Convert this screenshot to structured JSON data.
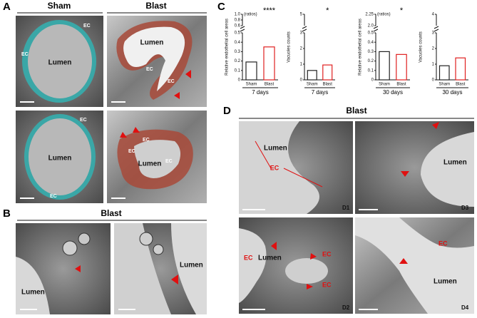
{
  "panel_a": {
    "label": "A",
    "columns": [
      "Sham",
      "Blast"
    ],
    "images": [
      {
        "lumen": "Lumen",
        "ec": [
          "EC",
          "EC"
        ]
      },
      {
        "lumen": "Lumen",
        "ec": [
          "EC",
          "EC"
        ]
      },
      {
        "lumen": "Lumen",
        "ec": [
          "EC",
          "EC"
        ]
      },
      {
        "lumen": "Lumen",
        "ec": [
          "EC",
          "EC",
          "EC"
        ]
      }
    ]
  },
  "panel_b": {
    "label": "B",
    "title": "Blast",
    "images": [
      {
        "lumen": "Lumen"
      },
      {
        "lumen": "Lumen"
      }
    ]
  },
  "panel_c": {
    "label": "C"
  },
  "chart_data": [
    {
      "type": "bar",
      "ylabel": "Relative endothelial cell areas",
      "unit": "(ratios)",
      "categories": [
        "Sham",
        "Blast"
      ],
      "values": [
        0.19,
        0.35
      ],
      "colors": [
        "#222222",
        "#e02020"
      ],
      "xlabel": "7 days",
      "significance": "****",
      "ylim": [
        0,
        0.5
      ],
      "yticks": [
        0,
        0.1,
        0.2,
        0.3,
        0.4,
        0.5
      ],
      "break_ylim": [
        0.6,
        1.0
      ],
      "break_yticks": [
        0.6,
        0.8,
        {
          "value": 1.0,
          "label": "1.0"
        }
      ]
    },
    {
      "type": "bar",
      "ylabel": "Vacuoles counts",
      "categories": [
        "Sham",
        "Blast"
      ],
      "values": [
        0.6,
        0.95
      ],
      "colors": [
        "#222222",
        "#e02020"
      ],
      "xlabel": "7 days",
      "significance": "*",
      "ylim": [
        0,
        3
      ],
      "yticks": [
        0,
        1,
        2,
        3
      ],
      "break_ylim": [
        4.5,
        5
      ],
      "break_yticks": [
        5
      ]
    },
    {
      "type": "bar",
      "ylabel": "Relative endothelial cell areas",
      "unit": "(ratios)",
      "categories": [
        "Sham",
        "Blast"
      ],
      "values": [
        0.3,
        0.27
      ],
      "colors": [
        "#222222",
        "#e02020"
      ],
      "xlabel": "30 days",
      "significance": "*",
      "ylim": [
        0,
        0.5
      ],
      "yticks": [
        0,
        0.1,
        0.2,
        0.3,
        0.4,
        0.5
      ],
      "break_ylim": [
        2.0,
        2.25
      ],
      "break_yticks": [
        {
          "value": 2.0,
          "label": "2.0"
        },
        2.25
      ]
    },
    {
      "type": "bar",
      "ylabel": "Vacuoles counts",
      "categories": [
        "Sham",
        "Blast"
      ],
      "values": [
        0.9,
        1.4
      ],
      "colors": [
        "#222222",
        "#e02020"
      ],
      "xlabel": "30 days",
      "ylim": [
        0,
        3
      ],
      "yticks": [
        0,
        1,
        2,
        3
      ],
      "break_ylim": [
        3.8,
        4
      ],
      "break_yticks": [
        4
      ]
    }
  ],
  "panel_d": {
    "label": "D",
    "title": "Blast",
    "images": [
      {
        "id": "D1",
        "lumen": "Lumen",
        "ec": "EC"
      },
      {
        "id": "D3",
        "lumen": "Lumen"
      },
      {
        "id": "D2",
        "lumen": "Lumen",
        "ec": [
          "EC",
          "EC",
          "EC"
        ]
      },
      {
        "id": "D4",
        "lumen": "Lumen",
        "ec": "EC"
      }
    ]
  }
}
